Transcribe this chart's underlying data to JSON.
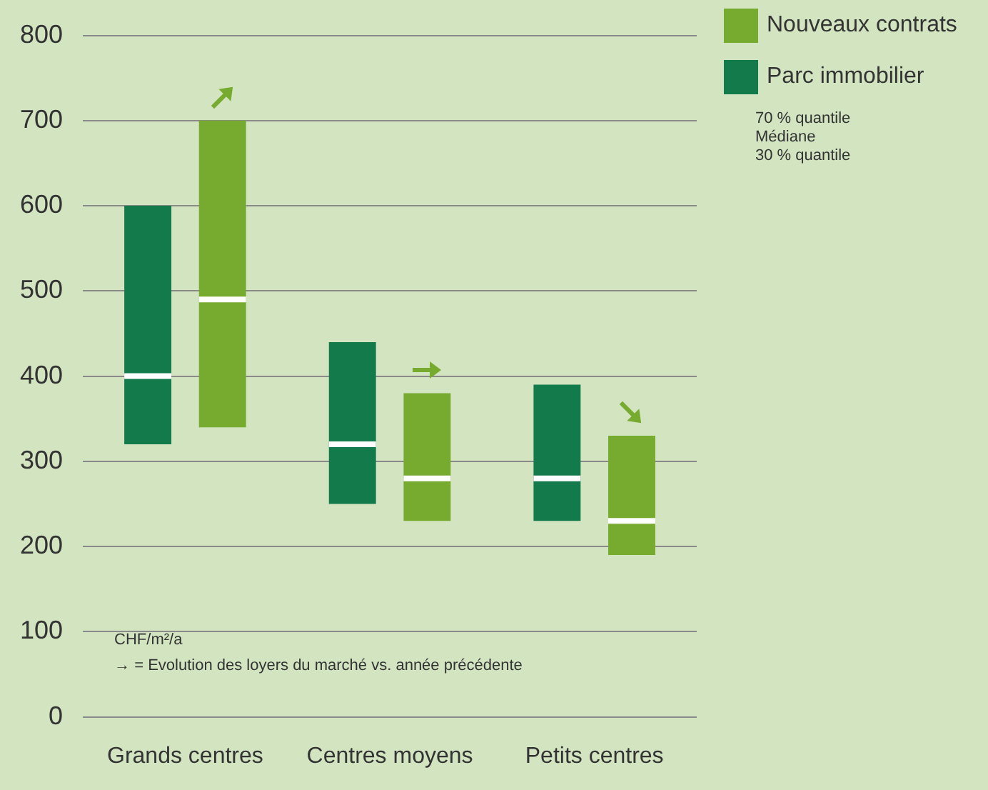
{
  "chart_data": {
    "type": "box",
    "categories": [
      "Grands centres",
      "Centres moyens",
      "Petits centres"
    ],
    "ylim": [
      0,
      800
    ],
    "yticks": [
      0,
      100,
      200,
      300,
      400,
      500,
      600,
      700,
      800
    ],
    "grid": "y",
    "legend": "top right",
    "series": [
      {
        "name": "Parc immobilier",
        "color": "#137a4c",
        "boxes": [
          {
            "low": 320,
            "q1": 320,
            "median": 400,
            "q3": 600,
            "high": 600
          },
          {
            "low": 250,
            "q1": 250,
            "median": 320,
            "q3": 440,
            "high": 440
          },
          {
            "low": 230,
            "q1": 230,
            "median": 280,
            "q3": 390,
            "high": 390
          }
        ]
      },
      {
        "name": "Nouveaux contrats",
        "color": "#76ab2f",
        "boxes": [
          {
            "low": 340,
            "q1": 340,
            "median": 490,
            "q3": 700,
            "high": 700
          },
          {
            "low": 230,
            "q1": 230,
            "median": 280,
            "q3": 380,
            "high": 380
          },
          {
            "low": 190,
            "q1": 190,
            "median": 230,
            "q3": 330,
            "high": 330
          }
        ]
      }
    ],
    "annotations": [
      "70 % quantile",
      "Médiane",
      "30 % quantile",
      "CHF/m²/a",
      "→ = Evolution des loyers du marché vs. année précédente"
    ]
  }
}
